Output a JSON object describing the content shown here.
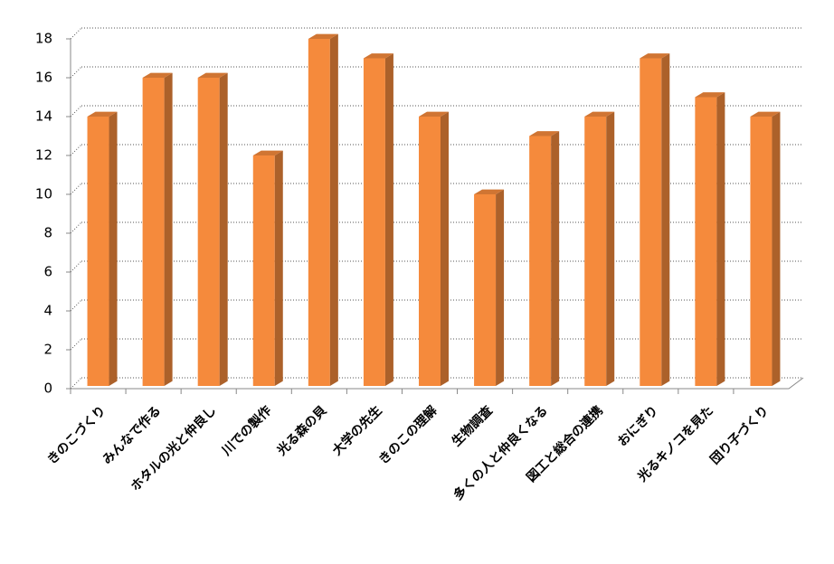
{
  "chart_data": {
    "type": "bar3d",
    "categories": [
      "きのこづくり",
      "みんなで作る",
      "ホタルの光と仲良し",
      "川での製作",
      "光る森の貝",
      "大学の先生",
      "きのこの理解",
      "生物調査",
      "多くの人と仲良くなる",
      "図工と総合の連携",
      "おにぎり",
      "光るキノコを見た",
      "団り子づくり"
    ],
    "values": [
      14,
      16,
      16,
      12,
      18,
      17,
      14,
      10,
      13,
      14,
      17,
      15,
      14
    ],
    "color": "#f58a3c",
    "ylim": [
      0,
      18
    ],
    "yticks": [
      0,
      2,
      4,
      6,
      8,
      10,
      12,
      14,
      16,
      18
    ],
    "grid": true
  }
}
